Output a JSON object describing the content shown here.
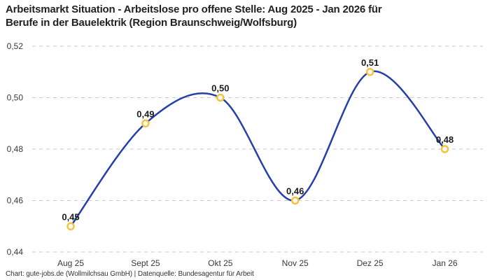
{
  "title": {
    "full": "Arbeitsmarkt Situation - Arbeitslose pro offene Stelle: Aug 2025 - Jan 2026 für Berufe in der Bauelektrik (Region Braunschweig/Wolfsburg)",
    "line1": "Arbeitsmarkt Situation - Arbeitslose pro offene Stelle: Aug 2025 - Jan 2026 für",
    "line2": "Berufe in der Bauelektrik (Region Braunschweig/Wolfsburg)"
  },
  "footer": {
    "text": "Chart: gute-jobs.de (Wollmilchsau GmbH) | Datenquelle: Bundesagentur für Arbeit"
  },
  "chart_data": {
    "type": "line",
    "title": "Arbeitsmarkt Situation - Arbeitslose pro offene Stelle: Aug 2025 - Jan 2026 für Berufe in der Bauelektrik (Region Braunschweig/Wolfsburg)",
    "categories": [
      "Aug 25",
      "Sept 25",
      "Okt 25",
      "Nov 25",
      "Dez 25",
      "Jan 26"
    ],
    "values": [
      0.45,
      0.49,
      0.5,
      0.46,
      0.51,
      0.48
    ],
    "value_labels": [
      "0,45",
      "0,49",
      "0,50",
      "0,46",
      "0,51",
      "0,48"
    ],
    "y_ticks": [
      0.44,
      0.46,
      0.48,
      0.5,
      0.52
    ],
    "y_tick_labels": [
      "0,44",
      "0,46",
      "0,48",
      "0,50",
      "0,52"
    ],
    "ylim": [
      0.44,
      0.52
    ],
    "xlabel": "",
    "ylabel": "",
    "grid": "horizontal-dashed",
    "legend": "none",
    "smooth": true,
    "line_color": "#2540a8",
    "marker_color": "#f9c23c",
    "grid_color": "#c9c9c9"
  }
}
